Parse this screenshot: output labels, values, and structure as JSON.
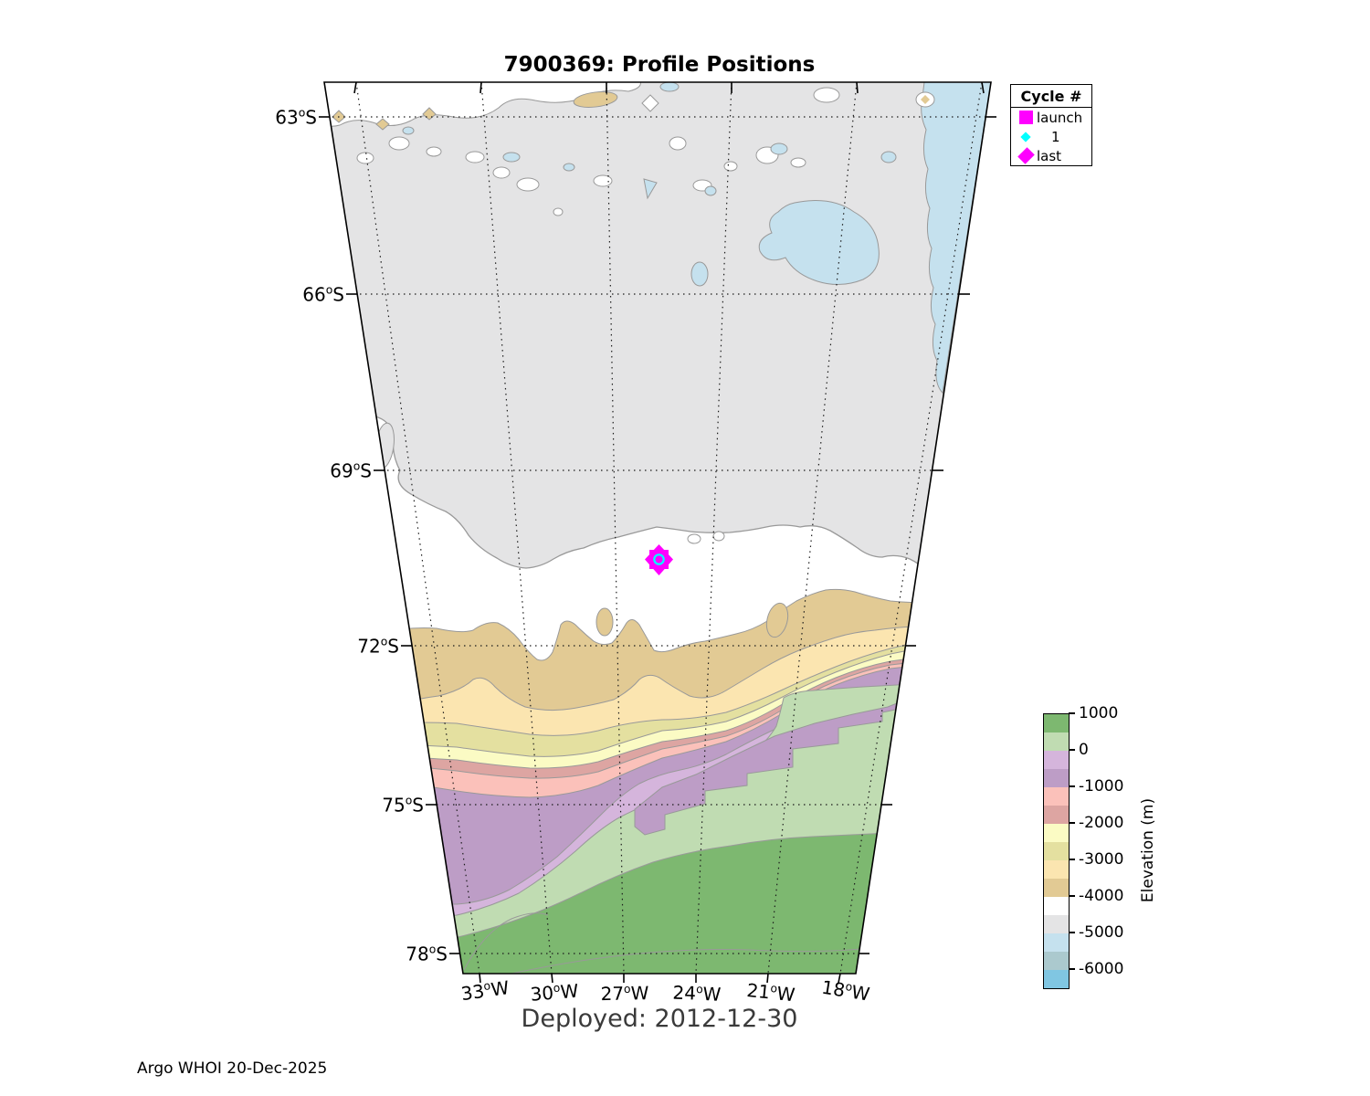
{
  "title": "7900369: Profile Positions",
  "deployed": "Deployed: 2012-12-30",
  "credit": "Argo WHOI 20-Dec-2025",
  "legend": {
    "header": "Cycle #",
    "items": [
      {
        "label": "launch",
        "marker": "square",
        "color": "#ff00ff"
      },
      {
        "label": "1",
        "marker": "diamond-small",
        "color": "#00ffff"
      },
      {
        "label": "last",
        "marker": "diamond",
        "color": "#ff00ff"
      }
    ]
  },
  "map": {
    "lat_labels": [
      "63°S",
      "66°S",
      "69°S",
      "72°S",
      "75°S",
      "78°S"
    ],
    "lon_labels": [
      "33°W",
      "30°W",
      "27°W",
      "24°W",
      "21°W",
      "18°W"
    ]
  },
  "colorbar": {
    "label": "Elevation (m)",
    "ticks": [
      "1000",
      "0",
      "-1000",
      "-2000",
      "-3000",
      "-4000",
      "-5000",
      "-6000"
    ],
    "segments": [
      "#7db870",
      "#c0dcb2",
      "#d5b5dc",
      "#bd9dc6",
      "#fbc1ba",
      "#dda5a2",
      "#fbfbc4",
      "#e4e0a0",
      "#fbe5b0",
      "#e2ca94",
      "#ffffff",
      "#e4e4e5",
      "#c5e1ee",
      "#abc9ce",
      "#80c6e2"
    ]
  },
  "palette": {
    "green": "#7db870",
    "light_green": "#c0dcb2",
    "lilac": "#d5b5dc",
    "purple": "#bd9dc6",
    "pink": "#fbc1ba",
    "rose": "#dda5a2",
    "pale_yellow": "#fbfbc4",
    "khaki": "#e4e0a0",
    "cream": "#fbe5b0",
    "tan": "#e2ca94",
    "white": "#ffffff",
    "light_gray": "#e4e4e5",
    "pale_blue": "#c5e1ee",
    "gray_blue": "#abc9ce",
    "blue": "#80c6e2",
    "contour": "#999999"
  },
  "markers": {
    "magenta": "#ff00ff",
    "cyan": "#00ffff"
  },
  "chart_data": {
    "type": "map",
    "title": "7900369: Profile Positions",
    "float_id": "7900369",
    "deployed_date": "2012-12-30",
    "generated_note": "Argo WHOI 20-Dec-2025",
    "lat_ticks_deg_S": [
      63,
      66,
      69,
      72,
      75,
      78
    ],
    "lon_ticks_deg_W": [
      33,
      30,
      27,
      24,
      21,
      18
    ],
    "positions": [
      {
        "cycle": "launch",
        "lat_deg_S": 70.5,
        "lon_deg_W": 25.7
      },
      {
        "cycle": "1",
        "lat_deg_S": 70.5,
        "lon_deg_W": 25.7
      },
      {
        "cycle": "last",
        "lat_deg_S": 70.5,
        "lon_deg_W": 25.7
      }
    ],
    "colorbar": {
      "label": "Elevation (m)",
      "tick_values": [
        1000,
        0,
        -1000,
        -2000,
        -3000,
        -4000,
        -5000,
        -6000
      ],
      "range_m": [
        -6500,
        1000
      ],
      "band_step_m": 500,
      "orientation": "vertical",
      "legend_position": "right"
    }
  }
}
